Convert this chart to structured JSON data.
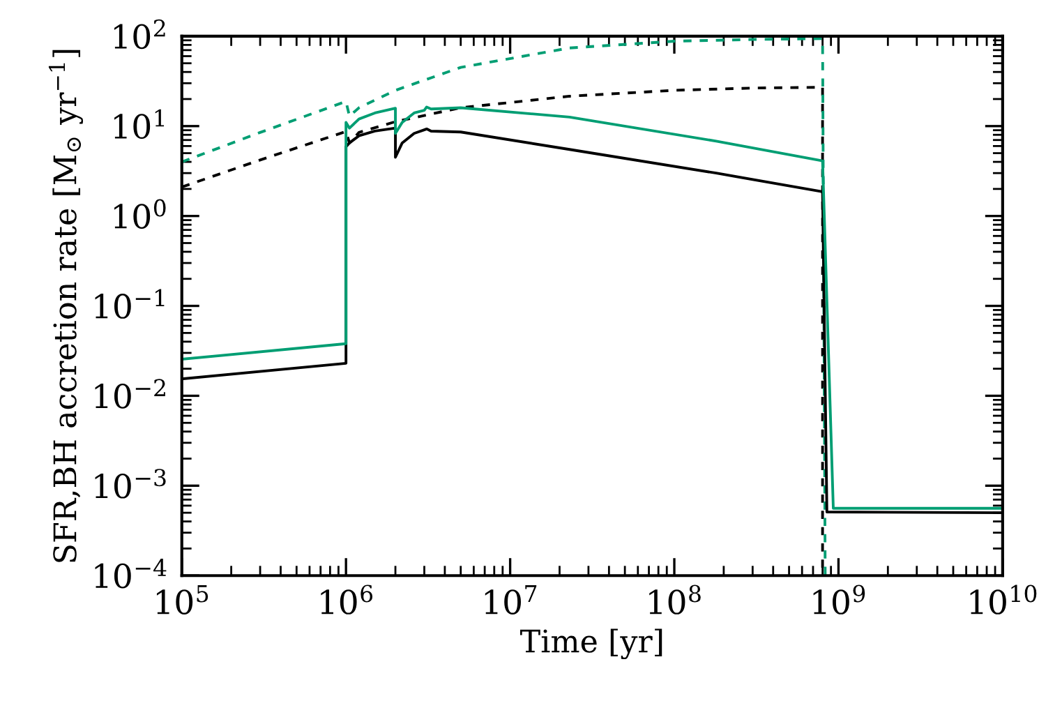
{
  "chart_data": {
    "type": "line",
    "xlabel": "Time [yr]",
    "ylabel": "SFR,BH accretion rate [M$_{⊙}$ yr$^{−1}$]",
    "log": "xy",
    "grid": false,
    "legend": false,
    "xlim": [
      100000,
      10000000000
    ],
    "ylim": [
      0.0001,
      100
    ],
    "xticks": [
      {
        "value": 100000,
        "label": "10$^{5}$"
      },
      {
        "value": 1000000,
        "label": "10$^{6}$"
      },
      {
        "value": 10000000,
        "label": "10$^{7}$"
      },
      {
        "value": 100000000,
        "label": "10$^{8}$"
      },
      {
        "value": 1000000000,
        "label": "10$^{9}$"
      },
      {
        "value": 10000000000,
        "label": "10$^{10}$"
      }
    ],
    "yticks": [
      {
        "value": 0.0001,
        "label": "10$^{−4}$"
      },
      {
        "value": 0.001,
        "label": "10$^{−3}$"
      },
      {
        "value": 0.01,
        "label": "10$^{−2}$"
      },
      {
        "value": 0.1,
        "label": "10$^{−1}$"
      },
      {
        "value": 1,
        "label": "10$^{0}$"
      },
      {
        "value": 10,
        "label": "10$^{1}$"
      },
      {
        "value": 100,
        "label": "10$^{2}$"
      }
    ],
    "series": [
      {
        "color": "#000000",
        "line_style": "dashed",
        "x": [
          100000,
          300000,
          1000000,
          1050000,
          1200000,
          2000000,
          5000000,
          23000000,
          100000000,
          300000000,
          800000000,
          800000000
        ],
        "values": [
          2.1,
          4.2,
          8.7,
          6.5,
          8.5,
          11.2,
          16,
          21.5,
          25,
          26.5,
          27,
          0.0001
        ]
      },
      {
        "color": "#009e73",
        "line_style": "dashed",
        "x": [
          100000,
          300000,
          1000000,
          1050000,
          1200000,
          2000000,
          5000000,
          23000000,
          100000000,
          300000000,
          800000000,
          830000000
        ],
        "values": [
          4,
          8.5,
          18.8,
          12.9,
          16,
          25,
          45,
          74,
          88,
          92,
          94,
          0.0001
        ]
      },
      {
        "color": "#000000",
        "line_style": "solid",
        "x": [
          100000,
          1000000,
          1000000,
          1050000,
          1200000,
          1500000,
          2000000,
          2000000,
          2200000,
          2600000,
          3000000,
          3100000,
          3300000,
          5000000,
          23000000,
          180000000,
          800000000,
          850000000,
          10000000000
        ],
        "values": [
          0.0154,
          0.023,
          5.9,
          6.5,
          7.8,
          8.8,
          9.5,
          4.5,
          6.5,
          8.3,
          9.1,
          9.3,
          8.8,
          8.6,
          5.5,
          3.0,
          1.86,
          0.00051,
          0.0005
        ]
      },
      {
        "color": "#009e73",
        "line_style": "solid",
        "x": [
          100000,
          1000000,
          1000000,
          1050000,
          1200000,
          1500000,
          2000000,
          2000000,
          2200000,
          2600000,
          3000000,
          3100000,
          3300000,
          5000000,
          23000000,
          180000000,
          800000000,
          930000000,
          10000000000
        ],
        "values": [
          0.0255,
          0.038,
          11,
          9.5,
          12,
          14,
          15.8,
          8.3,
          11,
          14,
          15,
          16.3,
          15.5,
          16,
          12.6,
          6.8,
          4.1,
          0.00056,
          0.00056
        ]
      }
    ]
  }
}
